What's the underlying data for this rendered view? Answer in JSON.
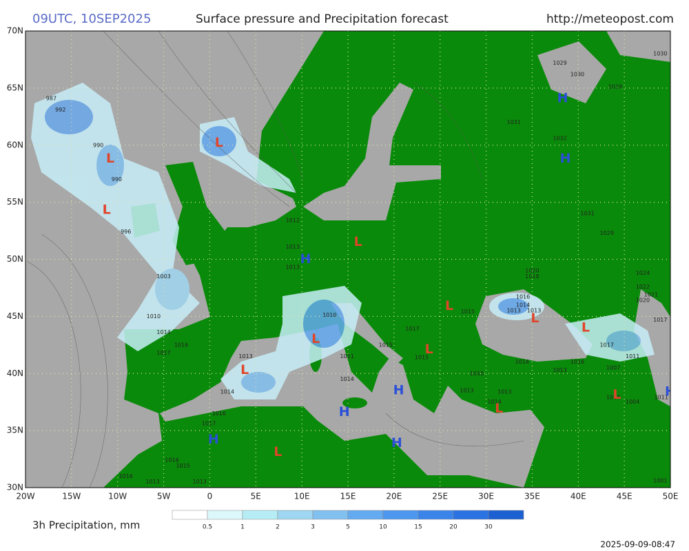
{
  "header": {
    "time": "09UTC, 10SEP2025",
    "title": "Surface pressure and Precipitation forecast",
    "url": "http://meteopost.com"
  },
  "map": {
    "lon_range": [
      -20,
      50
    ],
    "lat_range": [
      30,
      70
    ],
    "grid": true,
    "lon_ticks": [
      {
        "value": -20,
        "label": "20W"
      },
      {
        "value": -15,
        "label": "15W"
      },
      {
        "value": -10,
        "label": "10W"
      },
      {
        "value": -5,
        "label": "5W"
      },
      0,
      {
        "value": 5,
        "label": "5E"
      },
      {
        "value": 10,
        "label": "10E"
      },
      {
        "value": 15,
        "label": "15E"
      },
      {
        "value": 20,
        "label": "20E"
      },
      {
        "value": 25,
        "label": "25E"
      },
      {
        "value": 30,
        "label": "30E"
      },
      {
        "value": 35,
        "label": "35E"
      },
      {
        "value": 40,
        "label": "40E"
      },
      {
        "value": 45,
        "label": "45E"
      },
      {
        "value": 50,
        "label": "50E"
      }
    ],
    "lat_ticks": [
      {
        "value": 30,
        "label": "30N"
      },
      {
        "value": 35,
        "label": "35N"
      },
      {
        "value": 40,
        "label": "40N"
      },
      {
        "value": 45,
        "label": "45N"
      },
      {
        "value": 50,
        "label": "50N"
      },
      {
        "value": 55,
        "label": "55N"
      },
      {
        "value": 60,
        "label": "60N"
      },
      {
        "value": 65,
        "label": "65N"
      },
      {
        "value": 70,
        "label": "70N"
      }
    ],
    "high_color": "#2a4fd8",
    "low_color": "#e0452a",
    "pressure_centers": [
      {
        "label": "L",
        "lon": 1.0,
        "lat": 60.2
      },
      {
        "label": "L",
        "lon": -10.8,
        "lat": 58.8
      },
      {
        "label": "L",
        "lon": -11.2,
        "lat": 54.3
      },
      {
        "label": "H",
        "lon": 10.4,
        "lat": 50.0
      },
      {
        "label": "L",
        "lon": 16.1,
        "lat": 51.5
      },
      {
        "label": "L",
        "lon": 11.5,
        "lat": 43.0
      },
      {
        "label": "L",
        "lon": 3.8,
        "lat": 40.3
      },
      {
        "label": "H",
        "lon": 14.6,
        "lat": 36.6
      },
      {
        "label": "H",
        "lon": 20.5,
        "lat": 38.5
      },
      {
        "label": "H",
        "lon": 20.3,
        "lat": 33.9
      },
      {
        "label": "L",
        "lon": 7.4,
        "lat": 33.1
      },
      {
        "label": "H",
        "lon": 0.4,
        "lat": 34.2
      },
      {
        "label": "L",
        "lon": 26.0,
        "lat": 45.9
      },
      {
        "label": "L",
        "lon": 23.8,
        "lat": 42.1
      },
      {
        "label": "L",
        "lon": 35.3,
        "lat": 44.8
      },
      {
        "label": "L",
        "lon": 31.4,
        "lat": 36.9
      },
      {
        "label": "L",
        "lon": 40.8,
        "lat": 44.0
      },
      {
        "label": "L",
        "lon": 44.2,
        "lat": 38.1
      },
      {
        "label": "H",
        "lon": 38.3,
        "lat": 64.1
      },
      {
        "label": "H",
        "lon": 38.6,
        "lat": 58.8
      },
      {
        "label": "H",
        "lon": 50.0,
        "lat": 38.4
      }
    ],
    "isobar_labels": [
      {
        "label": "987",
        "lon": -17.2,
        "lat": 64.1
      },
      {
        "label": "992",
        "lon": -16.2,
        "lat": 63.1
      },
      {
        "label": "990",
        "lon": -12.1,
        "lat": 60.0
      },
      {
        "label": "990",
        "lon": -10.1,
        "lat": 57.0
      },
      {
        "label": "996",
        "lon": -9.1,
        "lat": 52.4
      },
      {
        "label": "1003",
        "lon": -5.0,
        "lat": 48.5
      },
      {
        "label": "1010",
        "lon": -6.1,
        "lat": 45.0
      },
      {
        "label": "1014",
        "lon": -5.0,
        "lat": 43.6
      },
      {
        "label": "1016",
        "lon": -3.1,
        "lat": 42.5
      },
      {
        "label": "1017",
        "lon": -5.0,
        "lat": 41.8
      },
      {
        "label": "1013",
        "lon": 3.9,
        "lat": 41.5
      },
      {
        "label": "1014",
        "lon": 1.9,
        "lat": 38.4
      },
      {
        "label": "1016",
        "lon": 1.0,
        "lat": 36.5
      },
      {
        "label": "1017",
        "lon": -0.1,
        "lat": 35.6
      },
      {
        "label": "1016",
        "lon": -4.1,
        "lat": 32.4
      },
      {
        "label": "1015",
        "lon": -2.9,
        "lat": 31.9
      },
      {
        "label": "1016",
        "lon": -9.1,
        "lat": 31.0
      },
      {
        "label": "1013",
        "lon": -6.2,
        "lat": 30.5
      },
      {
        "label": "1013",
        "lon": -1.1,
        "lat": 30.5
      },
      {
        "label": "1012",
        "lon": 9.0,
        "lat": 53.4
      },
      {
        "label": "1013",
        "lon": 9.0,
        "lat": 51.1
      },
      {
        "label": "1013",
        "lon": 9.0,
        "lat": 49.3
      },
      {
        "label": "1010",
        "lon": 13.0,
        "lat": 45.1
      },
      {
        "label": "1011",
        "lon": 14.9,
        "lat": 41.5
      },
      {
        "label": "1014",
        "lon": 14.9,
        "lat": 39.5
      },
      {
        "label": "1015",
        "lon": 19.1,
        "lat": 42.5
      },
      {
        "label": "1017",
        "lon": 22.0,
        "lat": 43.9
      },
      {
        "label": "1015",
        "lon": 23.0,
        "lat": 41.4
      },
      {
        "label": "1015",
        "lon": 28.0,
        "lat": 45.4
      },
      {
        "label": "1015",
        "lon": 29.0,
        "lat": 40.0
      },
      {
        "label": "1013",
        "lon": 27.9,
        "lat": 38.5
      },
      {
        "label": "1013",
        "lon": 32.0,
        "lat": 38.4
      },
      {
        "label": "1014",
        "lon": 30.9,
        "lat": 37.5
      },
      {
        "label": "1014",
        "lon": 33.9,
        "lat": 41.0
      },
      {
        "label": "1016",
        "lon": 34.0,
        "lat": 46.7
      },
      {
        "label": "1014",
        "lon": 34.0,
        "lat": 46.0
      },
      {
        "label": "1013",
        "lon": 33.0,
        "lat": 45.5
      },
      {
        "label": "1013",
        "lon": 35.2,
        "lat": 45.5
      },
      {
        "label": "1013",
        "lon": 38.0,
        "lat": 40.3
      },
      {
        "label": "1016",
        "lon": 39.9,
        "lat": 41.0
      },
      {
        "label": "1017",
        "lon": 43.1,
        "lat": 42.5
      },
      {
        "label": "1011",
        "lon": 45.9,
        "lat": 41.5
      },
      {
        "label": "1007",
        "lon": 43.8,
        "lat": 40.5
      },
      {
        "label": "1014",
        "lon": 43.8,
        "lat": 37.9
      },
      {
        "label": "1004",
        "lon": 45.9,
        "lat": 37.5
      },
      {
        "label": "1011",
        "lon": 49.0,
        "lat": 37.9
      },
      {
        "label": "1001",
        "lon": 48.9,
        "lat": 30.6
      },
      {
        "label": "1017",
        "lon": 48.9,
        "lat": 44.7
      },
      {
        "label": "1020",
        "lon": 47.0,
        "lat": 46.4
      },
      {
        "label": "1021",
        "lon": 47.9,
        "lat": 46.9
      },
      {
        "label": "1022",
        "lon": 47.0,
        "lat": 47.6
      },
      {
        "label": "1024",
        "lon": 47.0,
        "lat": 48.8
      },
      {
        "label": "1020",
        "lon": 35.0,
        "lat": 49.0
      },
      {
        "label": "1018",
        "lon": 35.0,
        "lat": 48.5
      },
      {
        "label": "1029",
        "lon": 43.1,
        "lat": 52.3
      },
      {
        "label": "1031",
        "lon": 41.0,
        "lat": 54.0
      },
      {
        "label": "1032",
        "lon": 38.0,
        "lat": 60.6
      },
      {
        "label": "1031",
        "lon": 33.0,
        "lat": 62.0
      },
      {
        "label": "1029",
        "lon": 38.0,
        "lat": 67.2
      },
      {
        "label": "1030",
        "lon": 39.9,
        "lat": 66.2
      },
      {
        "label": "1029",
        "lon": 44.0,
        "lat": 65.1
      },
      {
        "label": "1030",
        "lon": 48.9,
        "lat": 68.0
      }
    ]
  },
  "legend": {
    "title": "3h Precipitation, mm",
    "levels": [
      0.5,
      1,
      2,
      3,
      5,
      10,
      15,
      20,
      30
    ],
    "colors": [
      "#ffffff",
      "#dcf8fb",
      "#b6edf5",
      "#9fd6f1",
      "#82c0f0",
      "#64aaf0",
      "#4d97ee",
      "#3b84ea",
      "#2b72e2",
      "#1c60d2"
    ]
  },
  "footer": {
    "timestamp": "2025-09-09-08:47"
  }
}
